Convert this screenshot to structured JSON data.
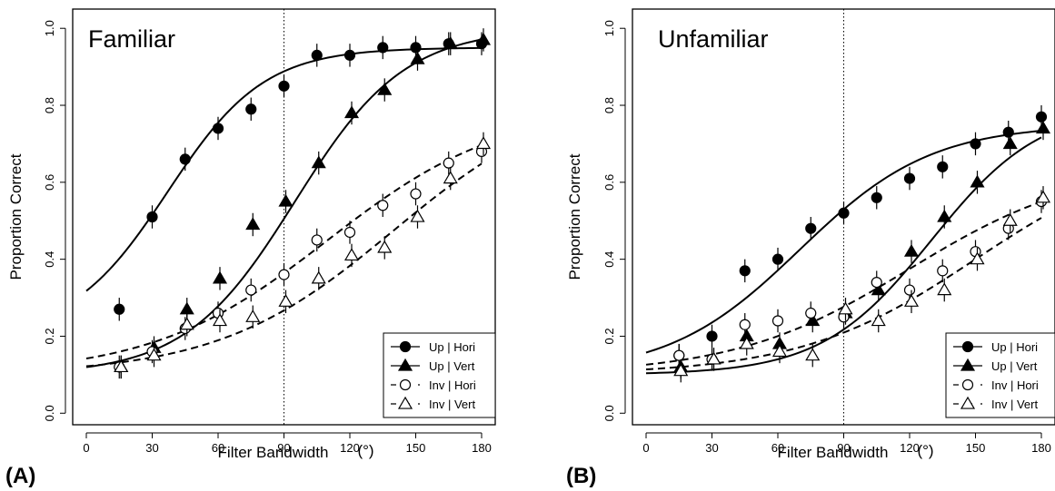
{
  "chart_data": [
    {
      "type": "line",
      "panel_label": "(A)",
      "title": "Familiar",
      "xlabel": "Filter Bandwidth",
      "xlabel_unit": "(°)",
      "ylabel": "Proportion Correct",
      "xlim": [
        0,
        180
      ],
      "ylim": [
        0,
        1
      ],
      "x_ticks": [
        "0",
        "30",
        "60",
        "90",
        "120",
        "150",
        "180"
      ],
      "y_ticks": [
        "0.0",
        "0.2",
        "0.4",
        "0.6",
        "0.8",
        "1.0"
      ],
      "reference_line_x": 90,
      "legend_position": "bottom-right",
      "x": [
        15,
        30,
        45,
        60,
        75,
        90,
        105,
        120,
        135,
        150,
        165,
        180
      ],
      "series": [
        {
          "name": "Up | Hori",
          "marker": "filled-circle",
          "line": "solid",
          "values": [
            0.27,
            0.51,
            0.66,
            0.74,
            0.79,
            0.85,
            0.93,
            0.93,
            0.95,
            0.95,
            0.96,
            0.96
          ],
          "fit": {
            "floor": 0.2,
            "ceiling": 0.95,
            "midpoint": 37,
            "slope": 22
          }
        },
        {
          "name": "Up | Vert",
          "marker": "filled-triangle",
          "line": "solid",
          "values": [
            0.12,
            0.17,
            0.27,
            0.35,
            0.49,
            0.55,
            0.65,
            0.78,
            0.84,
            0.92,
            0.96,
            0.97
          ],
          "fit": {
            "floor": 0.1,
            "ceiling": 1.0,
            "midpoint": 95,
            "slope": 25
          }
        },
        {
          "name": "Inv | Hori",
          "marker": "open-circle",
          "line": "dashed",
          "values": [
            0.12,
            0.16,
            0.22,
            0.26,
            0.32,
            0.36,
            0.45,
            0.47,
            0.54,
            0.57,
            0.65,
            0.68
          ],
          "fit": {
            "floor": 0.1,
            "ceiling": 0.8,
            "midpoint": 110,
            "slope": 40
          }
        },
        {
          "name": "Inv | Vert",
          "marker": "open-triangle",
          "line": "dashed",
          "values": [
            0.12,
            0.15,
            0.23,
            0.24,
            0.25,
            0.29,
            0.35,
            0.41,
            0.43,
            0.51,
            0.61,
            0.7
          ],
          "fit": {
            "floor": 0.1,
            "ceiling": 0.85,
            "midpoint": 140,
            "slope": 40
          }
        }
      ]
    },
    {
      "type": "line",
      "panel_label": "(B)",
      "title": "Unfamiliar",
      "xlabel": "Filter Bandwidth",
      "xlabel_unit": "(°)",
      "ylabel": "Proportion Correct",
      "xlim": [
        0,
        180
      ],
      "ylim": [
        0,
        1
      ],
      "x_ticks": [
        "0",
        "30",
        "60",
        "90",
        "120",
        "150",
        "180"
      ],
      "y_ticks": [
        "0.0",
        "0.2",
        "0.4",
        "0.6",
        "0.8",
        "1.0"
      ],
      "reference_line_x": 90,
      "legend_position": "bottom-right",
      "x": [
        15,
        30,
        45,
        60,
        75,
        90,
        105,
        120,
        135,
        150,
        165,
        180
      ],
      "series": [
        {
          "name": "Up | Hori",
          "marker": "filled-circle",
          "line": "solid",
          "values": [
            0.15,
            0.2,
            0.37,
            0.4,
            0.48,
            0.52,
            0.56,
            0.61,
            0.64,
            0.7,
            0.73,
            0.77
          ],
          "fit": {
            "floor": 0.1,
            "ceiling": 0.75,
            "midpoint": 70,
            "slope": 30
          }
        },
        {
          "name": "Up | Vert",
          "marker": "filled-triangle",
          "line": "solid",
          "values": [
            0.12,
            0.14,
            0.2,
            0.18,
            0.24,
            0.26,
            0.32,
            0.42,
            0.51,
            0.6,
            0.7,
            0.74
          ],
          "fit": {
            "floor": 0.1,
            "ceiling": 0.8,
            "midpoint": 130,
            "slope": 25
          }
        },
        {
          "name": "Inv | Hori",
          "marker": "open-circle",
          "line": "dashed",
          "values": [
            0.15,
            0.14,
            0.23,
            0.24,
            0.26,
            0.25,
            0.34,
            0.32,
            0.37,
            0.42,
            0.48,
            0.55
          ],
          "fit": {
            "floor": 0.1,
            "ceiling": 0.65,
            "midpoint": 120,
            "slope": 40
          }
        },
        {
          "name": "Inv | Vert",
          "marker": "open-triangle",
          "line": "dashed",
          "values": [
            0.11,
            0.14,
            0.18,
            0.16,
            0.15,
            0.27,
            0.24,
            0.29,
            0.32,
            0.4,
            0.5,
            0.56
          ],
          "fit": {
            "floor": 0.1,
            "ceiling": 0.7,
            "midpoint": 150,
            "slope": 40
          }
        }
      ]
    }
  ]
}
